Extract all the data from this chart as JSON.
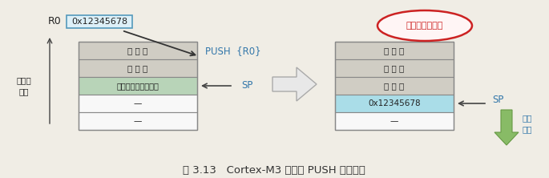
{
  "bg_color": "#f0ede5",
  "title": "图 3.13   Cortex-M3 堆栈的 PUSH 实现方式",
  "title_fontsize": 9.5,
  "r0_label": "R0",
  "r0_value": "0x12345678",
  "push_label": "PUSH  {R0}",
  "sp_label": "SP",
  "storage_label": "存储器\n地址",
  "annotation_text": "向下生长的满栈",
  "down_label": "向下\n生长",
  "left_table": {
    "rows": [
      "已 使 用",
      "已 使 用",
      "最近一次压入的数据",
      "—",
      "—"
    ],
    "colors": [
      "#d0cdc4",
      "#d0cdc4",
      "#b8d4b8",
      "#f8f8f8",
      "#f8f8f8"
    ]
  },
  "right_table": {
    "rows": [
      "已 使 用",
      "已 使 用",
      "已 使 用",
      "0x12345678",
      "—"
    ],
    "colors": [
      "#d0cdc4",
      "#d0cdc4",
      "#d0cdc4",
      "#aadde8",
      "#f8f8f8"
    ]
  }
}
